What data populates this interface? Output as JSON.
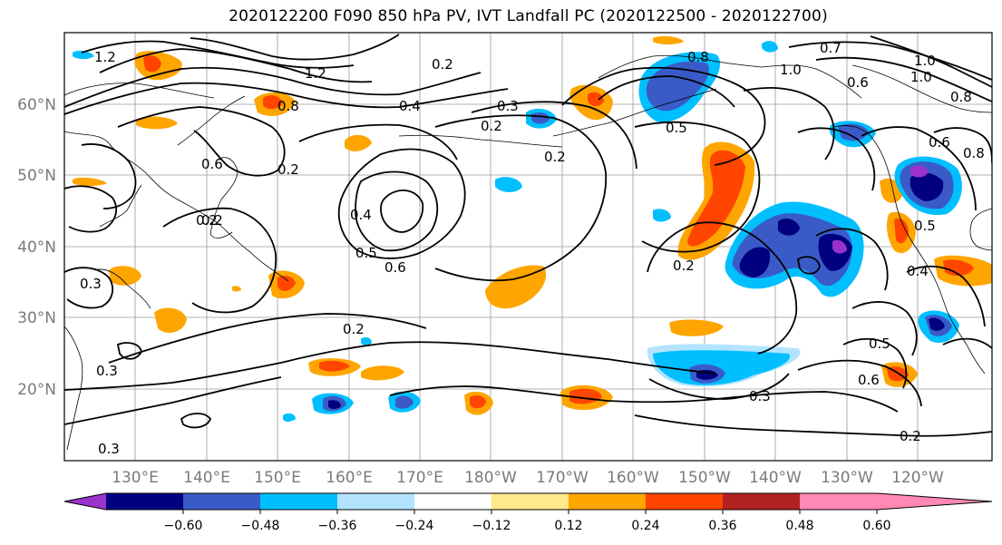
{
  "title": "2020122200 F090 850 hPa PV, IVT Landfall PC (2020122500 - 2020122700)",
  "lon_labels": [
    "130°E",
    "140°E",
    "150°E",
    "160°E",
    "170°E",
    "180°W",
    "170°W",
    "160°W",
    "150°W",
    "140°W",
    "130°W",
    "120°W"
  ],
  "lat_labels": [
    "60°N",
    "50°N",
    "40°N",
    "30°N",
    "20°N"
  ],
  "colorbar": {
    "colors": [
      "#9a32cd",
      "#000080",
      "#3a5bc7",
      "#00bfff",
      "#b3e4ff",
      "#ffffff",
      "#ffe98a",
      "#ffa500",
      "#ff4500",
      "#b22222",
      "#ff88b5"
    ],
    "tick_labels": [
      "−0.60",
      "−0.48",
      "−0.36",
      "−0.24",
      "−0.12",
      "0.12",
      "0.24",
      "0.36",
      "0.48",
      "0.60"
    ]
  },
  "contour_labels": [
    "1.2",
    "1.2",
    "0.8",
    "0.8",
    "0.6",
    "1.0",
    "1.0",
    "0.8",
    "0.4",
    "0.3",
    "0.2",
    "0.2",
    "0.3",
    "0.2",
    "0.4",
    "0.5",
    "0.6",
    "0.2",
    "0.3",
    "0.3",
    "0.2",
    "0.2",
    "0.5",
    "0.4",
    "0.5",
    "0.6",
    "0.2",
    "0.3",
    "0.2",
    "0.6",
    "0.8",
    "1.0",
    "0.5",
    "0.2",
    "0.7",
    "0.6"
  ]
}
